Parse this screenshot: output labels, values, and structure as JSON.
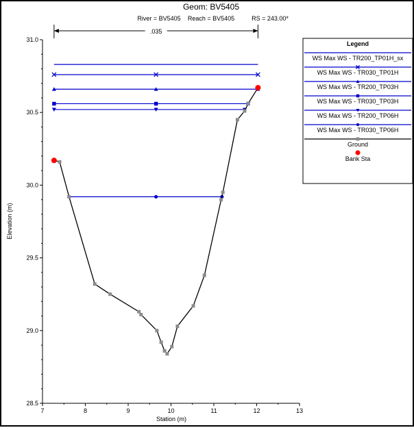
{
  "chart_data": {
    "type": "line",
    "title": "Geom: BV5405",
    "subtitle": {
      "river": "River = BV5405",
      "reach": "Reach = BV5405",
      "rs": "RS = 243.00*"
    },
    "manning_label": ".035",
    "xlabel": "Station (m)",
    "ylabel": "Elevation (m)",
    "xlim": [
      7,
      13
    ],
    "ylim": [
      28.5,
      31.0
    ],
    "x_ticks": [
      "7",
      "8",
      "9",
      "10",
      "11",
      "12",
      "13"
    ],
    "y_ticks": [
      "28.5",
      "29.0",
      "29.5",
      "30.0",
      "30.5",
      "31.0"
    ],
    "manning_extent": [
      7.27,
      12.03
    ],
    "ground": {
      "name": "Ground",
      "color": "#000000",
      "marker_color": "#8c8c8c",
      "x": [
        7.27,
        7.4,
        7.62,
        8.22,
        8.58,
        9.25,
        9.3,
        9.67,
        9.77,
        9.85,
        9.91,
        10.02,
        10.15,
        10.52,
        10.78,
        11.17,
        11.21,
        11.55,
        11.72,
        11.8,
        12.03
      ],
      "y": [
        30.17,
        30.16,
        29.92,
        29.32,
        29.25,
        29.13,
        29.11,
        29.0,
        28.92,
        28.86,
        28.84,
        28.89,
        29.03,
        29.17,
        29.38,
        29.9,
        29.95,
        30.45,
        30.51,
        30.56,
        30.67
      ]
    },
    "bank_stations": {
      "name": "Bank Sta",
      "color": "#ff0000",
      "x": [
        7.27,
        12.03
      ],
      "y": [
        30.17,
        30.67
      ]
    },
    "water_surfaces": [
      {
        "name": "WS Max WS - TR200_TP01H_sx",
        "marker": "none",
        "elevation": 30.83,
        "x": [
          7.27,
          12.03
        ]
      },
      {
        "name": "WS Max WS - TR030_TP01H",
        "marker": "x",
        "elevation": 30.76,
        "x": [
          7.27,
          12.03
        ]
      },
      {
        "name": "WS Max WS - TR200_TP03H",
        "marker": "triangle-up",
        "elevation": 30.66,
        "x": [
          7.27,
          12.03
        ]
      },
      {
        "name": "WS Max WS - TR030_TP03H",
        "marker": "square",
        "elevation": 30.56,
        "x": [
          7.27,
          11.8
        ]
      },
      {
        "name": "WS Max WS - TR200_TP06H",
        "marker": "triangle-down",
        "elevation": 30.52,
        "x": [
          7.27,
          11.72
        ]
      },
      {
        "name": "WS Max WS - TR030_TP06H",
        "marker": "circle",
        "elevation": 29.92,
        "x": [
          7.62,
          11.19
        ]
      }
    ],
    "ws_color": "#0000cc",
    "legend_title": "Legend",
    "legend_placement": "top-right",
    "grid": false
  }
}
